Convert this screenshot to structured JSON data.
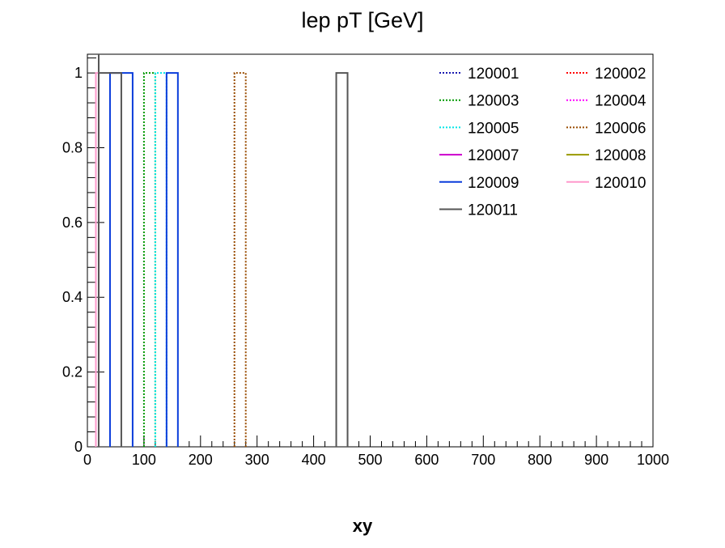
{
  "chart_data": {
    "type": "histogram",
    "title": "lep pT [GeV]",
    "xlabel": "xy",
    "ylabel": "",
    "xlim": [
      0,
      1000
    ],
    "ylim": [
      0,
      1.05
    ],
    "x_ticks": [
      0,
      100,
      200,
      300,
      400,
      500,
      600,
      700,
      800,
      900,
      1000
    ],
    "x_tick_labels": [
      "0",
      "100",
      "200",
      "300",
      "400",
      "500",
      "600",
      "700",
      "800",
      "900",
      "1000"
    ],
    "y_ticks": [
      0,
      0.2,
      0.4,
      0.6,
      0.8,
      1
    ],
    "y_tick_labels": [
      "0",
      "0.2",
      "0.4",
      "0.6",
      "0.8",
      "1"
    ],
    "legend_position": "top-right",
    "series": [
      {
        "name": "120001",
        "color": "#1a1ab0",
        "style": "dotted",
        "bins": []
      },
      {
        "name": "120002",
        "color": "#ff0000",
        "style": "dotted",
        "bins": []
      },
      {
        "name": "120003",
        "color": "#009900",
        "style": "dotted",
        "bins": [
          {
            "x0": 100,
            "x1": 120,
            "y": 1
          }
        ]
      },
      {
        "name": "120004",
        "color": "#ff00ff",
        "style": "dotted",
        "bins": []
      },
      {
        "name": "120005",
        "color": "#00e5e5",
        "style": "dotted",
        "bins": [
          {
            "x0": 120,
            "x1": 140,
            "y": 1
          }
        ]
      },
      {
        "name": "120006",
        "color": "#994c00",
        "style": "dotted",
        "bins": [
          {
            "x0": 260,
            "x1": 280,
            "y": 1
          }
        ]
      },
      {
        "name": "120007",
        "color": "#cc00cc",
        "style": "solid",
        "bins": []
      },
      {
        "name": "120008",
        "color": "#999900",
        "style": "solid",
        "bins": []
      },
      {
        "name": "120009",
        "color": "#0a3ddb",
        "style": "solid",
        "bins": [
          {
            "x0": 40,
            "x1": 80,
            "y": 1
          },
          {
            "x0": 140,
            "x1": 160,
            "y": 1
          }
        ]
      },
      {
        "name": "120010",
        "color": "#ff99cc",
        "style": "solid",
        "bins": [
          {
            "x0": 15,
            "x1": 20,
            "y": 1
          }
        ]
      },
      {
        "name": "120011",
        "color": "#555555",
        "style": "solid",
        "bins": [
          {
            "x0": 20,
            "x1": 60,
            "y": 1
          },
          {
            "x0": 440,
            "x1": 460,
            "y": 1
          }
        ]
      }
    ]
  }
}
